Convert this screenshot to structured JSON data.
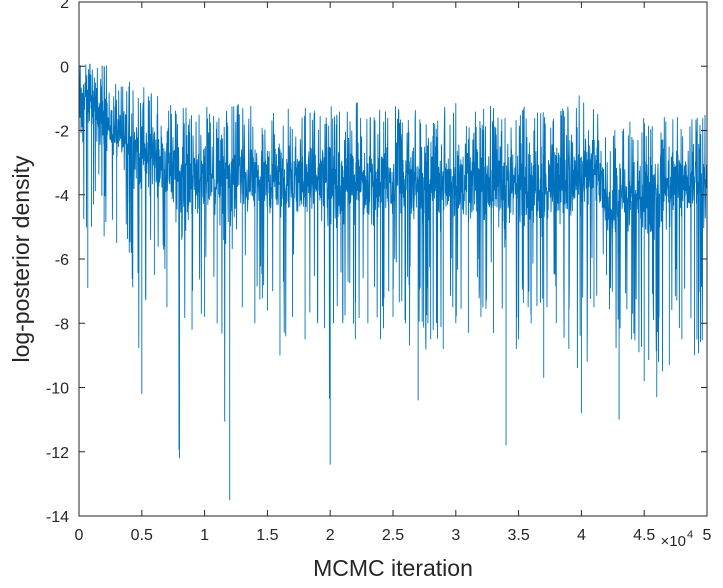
{
  "chart_data": {
    "type": "line",
    "title": "",
    "xlabel": "MCMC iteration",
    "ylabel": "log-posterior density",
    "xlim": [
      0,
      50000
    ],
    "ylim": [
      -14,
      2
    ],
    "x_tick_labels": [
      "0",
      "0.5",
      "1",
      "1.5",
      "2",
      "2.5",
      "3",
      "3.5",
      "4",
      "4.5",
      "5"
    ],
    "x_tick_values": [
      0,
      5000,
      10000,
      15000,
      20000,
      25000,
      30000,
      35000,
      40000,
      45000,
      50000
    ],
    "x_exponent_label": {
      "base": "×10",
      "power": "4"
    },
    "y_tick_values": [
      2,
      0,
      -2,
      -4,
      -6,
      -8,
      -10,
      -12,
      -14
    ],
    "y_tick_labels": [
      "2",
      "0",
      "-2",
      "-4",
      "-6",
      "-8",
      "-10",
      "-12",
      "-14"
    ],
    "grid": false,
    "line_color": "#0072BD",
    "series": [
      {
        "x": [
          0,
          1000,
          2000,
          3000,
          4000,
          5000,
          6000,
          7000,
          8000,
          9000,
          10000,
          11000,
          12000,
          13000,
          14000,
          15000,
          16000,
          17000,
          18000,
          19000,
          20000,
          21000,
          22000,
          23000,
          24000,
          25000,
          26000,
          27000,
          28000,
          29000,
          30000,
          31000,
          32000,
          33000,
          34000,
          35000,
          36000,
          37000,
          38000,
          39000,
          40000,
          41000,
          42000,
          43000,
          44000,
          45000,
          46000,
          47000,
          48000,
          49000,
          50000
        ],
        "upper": [
          0.2,
          0.1,
          0.1,
          -0.2,
          -0.3,
          -0.6,
          -0.8,
          -1.0,
          -1.3,
          -1.1,
          -1.2,
          -1.1,
          -1.3,
          -1.0,
          -0.9,
          -1.2,
          -1.1,
          -1.3,
          -1.2,
          -1.4,
          -1.1,
          -1.4,
          -1.0,
          -1.2,
          -1.3,
          -1.2,
          -0.9,
          -1.2,
          -1.0,
          -1.3,
          -1.0,
          -1.2,
          -1.3,
          -1.2,
          -1.4,
          -1.1,
          -1.0,
          -1.3,
          -1.2,
          -1.2,
          -0.5,
          -0.8,
          -2.3,
          -1.7,
          -1.6,
          -1.5,
          -1.4,
          -1.5,
          -1.6,
          -1.5,
          -1.4
        ],
        "lower": [
          -6.9,
          -5.0,
          -5.3,
          -5.5,
          -5.8,
          -10.2,
          -6.5,
          -7.5,
          -12.2,
          -8.2,
          -7.8,
          -8.0,
          -13.5,
          -7.5,
          -8.0,
          -7.6,
          -9.0,
          -7.8,
          -8.5,
          -8.0,
          -12.4,
          -8.0,
          -8.5,
          -8.0,
          -8.5,
          -7.8,
          -8.0,
          -10.4,
          -8.5,
          -8.8,
          -8.0,
          -8.3,
          -7.8,
          -8.3,
          -11.8,
          -8.5,
          -8.0,
          -9.7,
          -8.0,
          -8.8,
          -10.8,
          -7.5,
          -6.5,
          -11.0,
          -8.5,
          -9.8,
          -10.3,
          -9.3,
          -8.5,
          -9.0,
          -9.0
        ],
        "center": [
          -0.9,
          -1.3,
          -1.7,
          -2.1,
          -2.4,
          -2.7,
          -2.9,
          -3.1,
          -3.3,
          -3.4,
          -3.5,
          -3.5,
          -3.6,
          -3.6,
          -3.6,
          -3.6,
          -3.6,
          -3.6,
          -3.6,
          -3.6,
          -3.6,
          -3.6,
          -3.6,
          -3.6,
          -3.6,
          -3.6,
          -3.6,
          -3.6,
          -3.6,
          -3.6,
          -3.7,
          -3.7,
          -3.7,
          -3.7,
          -3.7,
          -3.7,
          -3.7,
          -3.7,
          -3.7,
          -3.7,
          -3.5,
          -3.2,
          -4.4,
          -4.5,
          -4.2,
          -4.0,
          -3.8,
          -3.7,
          -3.7,
          -3.6,
          -3.5
        ]
      }
    ]
  }
}
